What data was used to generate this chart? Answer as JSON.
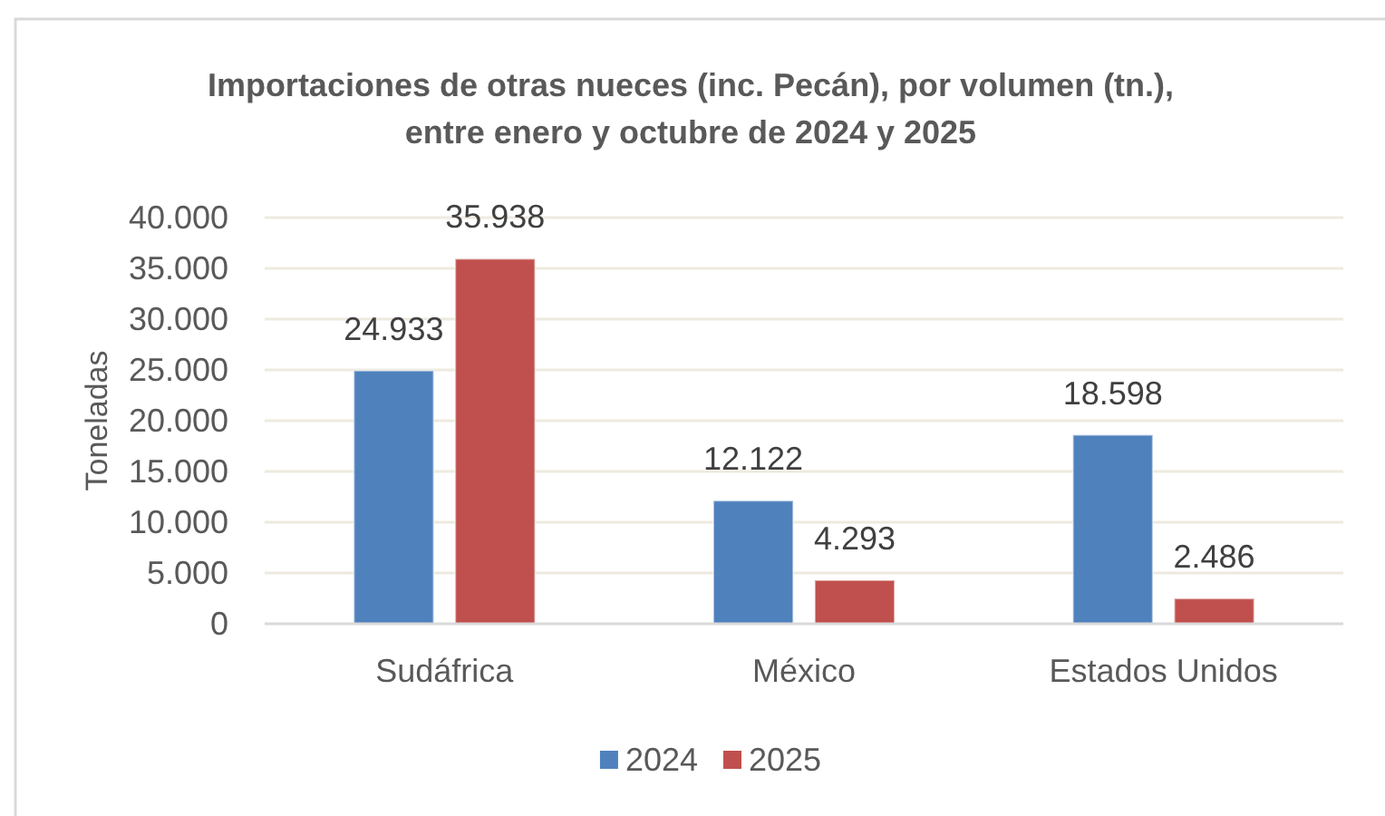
{
  "chart_data": {
    "type": "bar",
    "title": "Importaciones de otras nueces (inc. Pecán), por volumen (tn.),\nentre enero y octubre de 2024 y 2025",
    "ylabel": "Toneladas",
    "categories": [
      "Sudáfrica",
      "México",
      "Estados Unidos"
    ],
    "series": [
      {
        "name": "2024",
        "color": "#4f81bd",
        "values": [
          24933,
          12122,
          18598
        ],
        "value_labels": [
          "24.933",
          "12.122",
          "18.598"
        ]
      },
      {
        "name": "2025",
        "color": "#c0504d",
        "values": [
          35938,
          4293,
          2486
        ],
        "value_labels": [
          "35.938",
          "4.293",
          "2.486"
        ]
      }
    ],
    "ylim": [
      0,
      40000
    ],
    "yticks": [
      {
        "value": 0,
        "label": "0"
      },
      {
        "value": 5000,
        "label": "5.000"
      },
      {
        "value": 10000,
        "label": "10.000"
      },
      {
        "value": 15000,
        "label": "15.000"
      },
      {
        "value": 20000,
        "label": "20.000"
      },
      {
        "value": 25000,
        "label": "25.000"
      },
      {
        "value": 30000,
        "label": "30.000"
      },
      {
        "value": 35000,
        "label": "35.000"
      },
      {
        "value": 40000,
        "label": "40.000"
      }
    ],
    "grid": "y",
    "legend": "bottom"
  }
}
